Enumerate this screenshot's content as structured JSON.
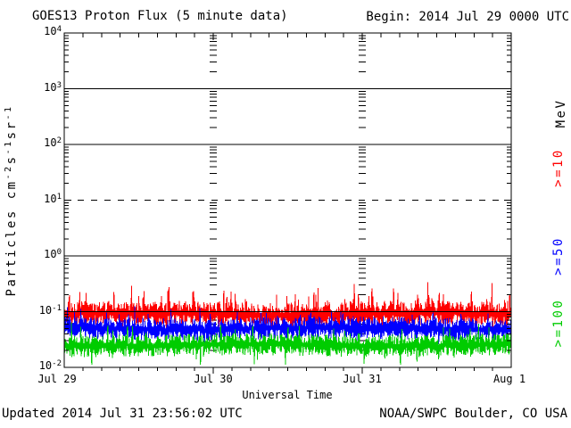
{
  "header": {
    "title": "GOES13 Proton Flux (5 minute data)",
    "begin": "Begin: 2014 Jul 29 0000 UTC"
  },
  "footer": {
    "updated": "Updated 2014 Jul 31 23:56:02 UTC",
    "credit": "NOAA/SWPC Boulder, CO USA"
  },
  "chart_data": {
    "type": "line",
    "title": "GOES13 Proton Flux (5 minute data)",
    "xlabel": "Universal Time",
    "ylabel": "Particles cm-2s-1sr-1",
    "ylabel_segments": [
      {
        "text": "Particles cm"
      },
      {
        "text": "-2",
        "sup": true
      },
      {
        "text": "s"
      },
      {
        "text": "-1",
        "sup": true
      },
      {
        "text": "sr"
      },
      {
        "text": "-1",
        "sup": true
      }
    ],
    "right_axis_title": "MeV",
    "x_tick_labels": [
      "Jul 29",
      "Jul 30",
      "Jul 31",
      "Aug 1"
    ],
    "x_range_hours": 72,
    "x_minor_tick_hours": 3,
    "y_exponents": [
      4,
      3,
      2,
      1,
      0,
      -1,
      -2
    ],
    "ylim_log10": [
      -2,
      4
    ],
    "grid_solid_log10": [
      3,
      2,
      0,
      -1
    ],
    "grid_dashed_log10": [
      1
    ],
    "day_marker_hours": [
      24,
      48
    ],
    "points_per_series": 864,
    "series": [
      {
        "label": ">=10",
        "name": ">=10 MeV protons",
        "color": "#ff0000",
        "median_flux": 0.095,
        "typical_range": [
          0.055,
          0.16
        ],
        "peak_flux": 0.32,
        "gen": {
          "seed": 20140729,
          "log_base": -1.04,
          "log_band": 0.22,
          "spike_prob": 0.15,
          "spike_amp": 0.35,
          "dip_prob": 0.1,
          "dip_amp": 0.18
        }
      },
      {
        "label": ">=50",
        "name": ">=50 MeV protons",
        "color": "#0000ff",
        "median_flux": 0.05,
        "typical_range": [
          0.03,
          0.083
        ],
        "peak_flux": 0.1,
        "gen": {
          "seed": 50,
          "log_base": -1.3,
          "log_band": 0.2,
          "spike_prob": 0.1,
          "spike_amp": 0.22,
          "dip_prob": 0.08,
          "dip_amp": 0.15
        }
      },
      {
        "label": ">=100",
        "name": ">=100 MeV protons",
        "color": "#00cc00",
        "median_flux": 0.025,
        "typical_range": [
          0.014,
          0.044
        ],
        "peak_flux": 0.065,
        "gen": {
          "seed": 100,
          "log_base": -1.6,
          "log_band": 0.2,
          "spike_prob": 0.1,
          "spike_amp": 0.25,
          "dip_prob": 0.08,
          "dip_amp": 0.25
        }
      }
    ]
  }
}
